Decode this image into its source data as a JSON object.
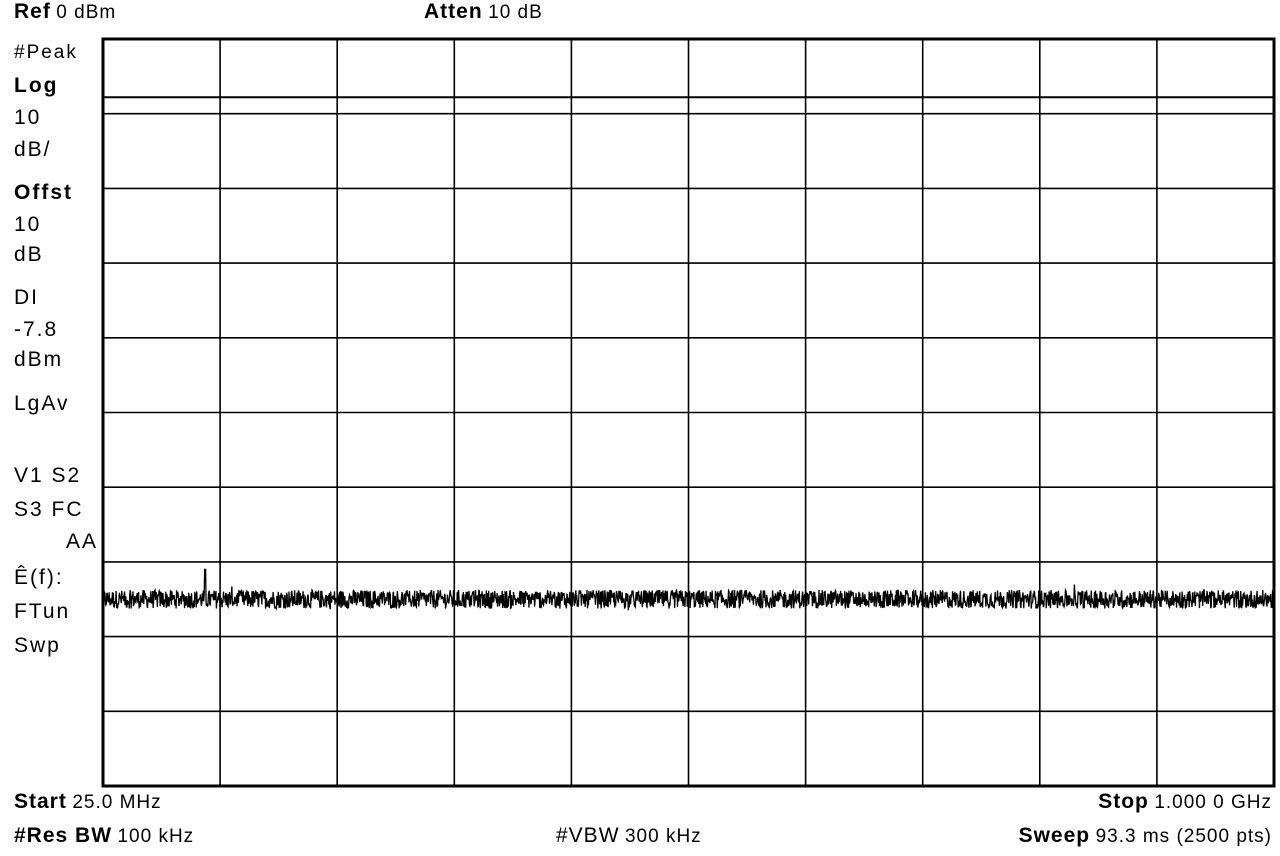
{
  "header": {
    "ref_label": "Ref",
    "ref_value": "0 dBm",
    "atten_label": "Atten",
    "atten_value": "10 dB"
  },
  "side_annotations": [
    {
      "text": "#Peak",
      "bold": false
    },
    {
      "text": "Log",
      "bold": true
    },
    {
      "text": "10",
      "bold": false
    },
    {
      "text": "dB/",
      "bold": false
    },
    {
      "text": "Offst",
      "bold": true
    },
    {
      "text": "10",
      "bold": false
    },
    {
      "text": "dB",
      "bold": false
    },
    {
      "text": "DI",
      "bold": false
    },
    {
      "text": "-7.8",
      "bold": false
    },
    {
      "text": "dBm",
      "bold": false
    },
    {
      "text": "LgAv",
      "bold": false
    },
    {
      "text": "V1  S2",
      "bold": false
    },
    {
      "text": "S3  FC",
      "bold": false
    },
    {
      "text": "AA",
      "bold": false
    },
    {
      "text": "Ê(f):",
      "bold": false
    },
    {
      "text": "FTun",
      "bold": false
    },
    {
      "text": "Swp",
      "bold": false
    }
  ],
  "footer": {
    "start_label": "Start",
    "start_value": "25.0 MHz",
    "stop_label": "Stop",
    "stop_value": "1.000 0 GHz",
    "resbw_label": "#Res BW",
    "resbw_value": "100 kHz",
    "vbw_label": "#VBW",
    "vbw_value": "300 kHz",
    "sweep_label": "Sweep",
    "sweep_value": "93.3 ms (2500 pts)"
  },
  "chart_data": {
    "type": "line",
    "x_start_mhz": 25.0,
    "x_stop_mhz": 1000.0,
    "points": 2500,
    "reference_level_dbm": 0,
    "scale_db_per_div": 10,
    "divisions_x": 10,
    "divisions_y": 10,
    "ylim": [
      -100,
      0
    ],
    "display_line_dbm": -7.8,
    "noise_floor_dbm": -75,
    "noise_peak_to_peak_db": 2.5,
    "spurs": [
      {
        "x_mhz": 110,
        "y_dbm": -71
      }
    ],
    "grid": true,
    "colors": {
      "trace": "#000000",
      "grid": "#000000",
      "background": "#ffffff"
    }
  }
}
